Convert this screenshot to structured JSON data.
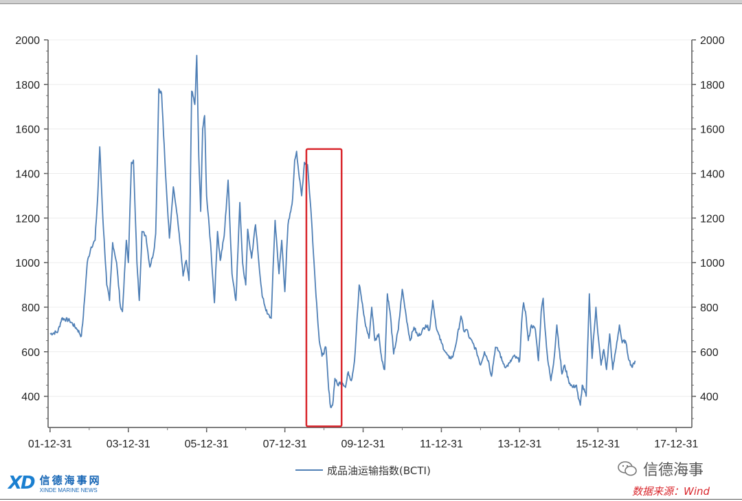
{
  "chart_data": {
    "type": "line",
    "title": "",
    "xlabel": "",
    "ylabel": "",
    "x_ticks": [
      "01-12-31",
      "03-12-31",
      "05-12-31",
      "07-12-31",
      "09-12-31",
      "11-12-31",
      "13-12-31",
      "15-12-31",
      "17-12-31"
    ],
    "y_ticks": [
      400,
      600,
      800,
      1000,
      1200,
      1400,
      1600,
      1800,
      2000
    ],
    "ylim": [
      260,
      2000
    ],
    "xlim": [
      2001.95,
      2018.4
    ],
    "grid": true,
    "legend_position": "bottom",
    "highlight_box": {
      "x_range": [
        2008.55,
        2009.45
      ],
      "y_range": [
        265,
        1510
      ],
      "color": "#d9262c"
    },
    "series": [
      {
        "name": "成品油运输指数(BCTI)",
        "color": "#4f7fb5",
        "points": [
          [
            2002.0,
            680
          ],
          [
            2002.2,
            690
          ],
          [
            2002.3,
            750
          ],
          [
            2002.5,
            740
          ],
          [
            2002.7,
            700
          ],
          [
            2002.8,
            670
          ],
          [
            2002.85,
            760
          ],
          [
            2002.95,
            1000
          ],
          [
            2003.05,
            1070
          ],
          [
            2003.15,
            1100
          ],
          [
            2003.22,
            1300
          ],
          [
            2003.27,
            1520
          ],
          [
            2003.35,
            1200
          ],
          [
            2003.45,
            900
          ],
          [
            2003.52,
            830
          ],
          [
            2003.6,
            1090
          ],
          [
            2003.7,
            1000
          ],
          [
            2003.8,
            800
          ],
          [
            2003.85,
            780
          ],
          [
            2003.95,
            1100
          ],
          [
            2004.0,
            1000
          ],
          [
            2004.08,
            1450
          ],
          [
            2004.13,
            1460
          ],
          [
            2004.22,
            1000
          ],
          [
            2004.28,
            830
          ],
          [
            2004.35,
            1140
          ],
          [
            2004.45,
            1120
          ],
          [
            2004.55,
            980
          ],
          [
            2004.65,
            1050
          ],
          [
            2004.7,
            1130
          ],
          [
            2004.78,
            1780
          ],
          [
            2004.85,
            1760
          ],
          [
            2004.95,
            1400
          ],
          [
            2005.05,
            1110
          ],
          [
            2005.15,
            1340
          ],
          [
            2005.22,
            1250
          ],
          [
            2005.3,
            1130
          ],
          [
            2005.4,
            940
          ],
          [
            2005.48,
            1010
          ],
          [
            2005.55,
            920
          ],
          [
            2005.62,
            1770
          ],
          [
            2005.7,
            1710
          ],
          [
            2005.75,
            1930
          ],
          [
            2005.8,
            1480
          ],
          [
            2005.85,
            1230
          ],
          [
            2005.9,
            1600
          ],
          [
            2005.95,
            1660
          ],
          [
            2006.0,
            1300
          ],
          [
            2006.1,
            1090
          ],
          [
            2006.2,
            820
          ],
          [
            2006.28,
            1140
          ],
          [
            2006.35,
            1010
          ],
          [
            2006.45,
            1120
          ],
          [
            2006.55,
            1370
          ],
          [
            2006.65,
            950
          ],
          [
            2006.75,
            830
          ],
          [
            2006.85,
            1270
          ],
          [
            2006.92,
            1000
          ],
          [
            2007.0,
            900
          ],
          [
            2007.05,
            1150
          ],
          [
            2007.15,
            1020
          ],
          [
            2007.25,
            1170
          ],
          [
            2007.32,
            1030
          ],
          [
            2007.42,
            850
          ],
          [
            2007.55,
            770
          ],
          [
            2007.65,
            750
          ],
          [
            2007.75,
            1190
          ],
          [
            2007.85,
            950
          ],
          [
            2007.92,
            1100
          ],
          [
            2008.0,
            870
          ],
          [
            2008.08,
            1170
          ],
          [
            2008.15,
            1230
          ],
          [
            2008.2,
            1290
          ],
          [
            2008.25,
            1460
          ],
          [
            2008.3,
            1500
          ],
          [
            2008.37,
            1380
          ],
          [
            2008.43,
            1300
          ],
          [
            2008.5,
            1450
          ],
          [
            2008.58,
            1440
          ],
          [
            2008.68,
            1200
          ],
          [
            2008.78,
            900
          ],
          [
            2008.88,
            650
          ],
          [
            2008.95,
            580
          ],
          [
            2009.05,
            620
          ],
          [
            2009.12,
            430
          ],
          [
            2009.17,
            350
          ],
          [
            2009.22,
            360
          ],
          [
            2009.28,
            480
          ],
          [
            2009.35,
            450
          ],
          [
            2009.45,
            470
          ],
          [
            2009.55,
            440
          ],
          [
            2009.62,
            510
          ],
          [
            2009.7,
            470
          ],
          [
            2009.78,
            560
          ],
          [
            2009.9,
            900
          ],
          [
            2009.95,
            850
          ],
          [
            2010.05,
            730
          ],
          [
            2010.15,
            660
          ],
          [
            2010.22,
            800
          ],
          [
            2010.3,
            650
          ],
          [
            2010.4,
            680
          ],
          [
            2010.48,
            560
          ],
          [
            2010.55,
            520
          ],
          [
            2010.62,
            860
          ],
          [
            2010.7,
            760
          ],
          [
            2010.78,
            590
          ],
          [
            2010.9,
            700
          ],
          [
            2011.0,
            880
          ],
          [
            2011.1,
            760
          ],
          [
            2011.2,
            650
          ],
          [
            2011.3,
            710
          ],
          [
            2011.4,
            670
          ],
          [
            2011.5,
            690
          ],
          [
            2011.6,
            720
          ],
          [
            2011.7,
            700
          ],
          [
            2011.78,
            830
          ],
          [
            2011.88,
            700
          ],
          [
            2012.0,
            640
          ],
          [
            2012.1,
            600
          ],
          [
            2012.2,
            570
          ],
          [
            2012.3,
            580
          ],
          [
            2012.4,
            660
          ],
          [
            2012.5,
            760
          ],
          [
            2012.58,
            690
          ],
          [
            2012.65,
            700
          ],
          [
            2012.72,
            660
          ],
          [
            2012.8,
            640
          ],
          [
            2012.9,
            600
          ],
          [
            2013.0,
            540
          ],
          [
            2013.1,
            600
          ],
          [
            2013.2,
            560
          ],
          [
            2013.28,
            490
          ],
          [
            2013.38,
            620
          ],
          [
            2013.48,
            600
          ],
          [
            2013.55,
            560
          ],
          [
            2013.65,
            530
          ],
          [
            2013.75,
            550
          ],
          [
            2013.85,
            580
          ],
          [
            2014.0,
            560
          ],
          [
            2014.05,
            730
          ],
          [
            2014.1,
            820
          ],
          [
            2014.15,
            780
          ],
          [
            2014.22,
            650
          ],
          [
            2014.3,
            720
          ],
          [
            2014.4,
            700
          ],
          [
            2014.48,
            560
          ],
          [
            2014.55,
            780
          ],
          [
            2014.6,
            840
          ],
          [
            2014.65,
            700
          ],
          [
            2014.72,
            560
          ],
          [
            2014.8,
            470
          ],
          [
            2014.88,
            570
          ],
          [
            2014.95,
            720
          ],
          [
            2015.02,
            600
          ],
          [
            2015.08,
            500
          ],
          [
            2015.15,
            540
          ],
          [
            2015.25,
            470
          ],
          [
            2015.35,
            440
          ],
          [
            2015.45,
            450
          ],
          [
            2015.5,
            390
          ],
          [
            2015.55,
            360
          ],
          [
            2015.6,
            450
          ],
          [
            2015.7,
            400
          ],
          [
            2015.78,
            860
          ],
          [
            2015.85,
            570
          ],
          [
            2015.95,
            800
          ],
          [
            2016.0,
            680
          ],
          [
            2016.08,
            540
          ],
          [
            2016.15,
            610
          ],
          [
            2016.22,
            520
          ],
          [
            2016.3,
            680
          ],
          [
            2016.38,
            520
          ],
          [
            2016.45,
            600
          ],
          [
            2016.55,
            720
          ],
          [
            2016.62,
            640
          ],
          [
            2016.7,
            650
          ],
          [
            2016.8,
            560
          ],
          [
            2016.88,
            530
          ],
          [
            2016.95,
            560
          ]
        ]
      }
    ]
  },
  "legend": {
    "label": "成品油运输指数(BCTI)"
  },
  "logo": {
    "mark": "XD",
    "name_cn": "信德海事网",
    "name_en": "XINDE MARINE NEWS"
  },
  "wechat": {
    "label": "信德海事"
  },
  "source": {
    "text": "数据来源：Wind"
  },
  "colors": {
    "line": "#4f7fb5",
    "highlight": "#d9262c",
    "logo": "#1565b5"
  }
}
